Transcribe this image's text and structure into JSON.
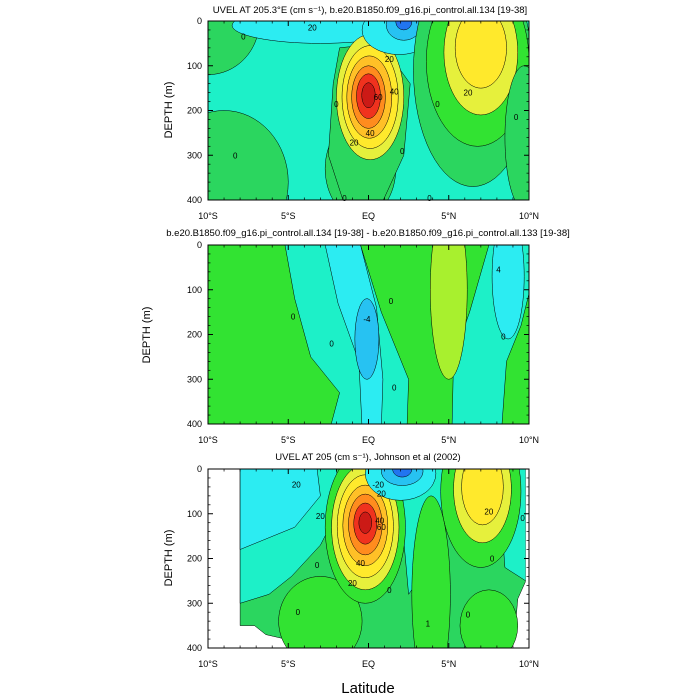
{
  "chart_data": [
    {
      "type": "heatmap",
      "title": "UVEL AT 205.3°E (cm s⁻¹), b.e20.B1850.f09_g16.pi_control.all.134 [19-38]",
      "ylabel": "DEPTH (m)",
      "xlabel": "",
      "x_ticks": [
        "10°S",
        "5°S",
        "EQ",
        "5°N",
        "10°N"
      ],
      "y_ticks": [
        "0",
        "100",
        "200",
        "300",
        "400"
      ],
      "xlim": [
        -10,
        10
      ],
      "ylim": [
        400,
        0
      ],
      "contour_labels": [
        {
          "text": "20",
          "lat": -3.5,
          "depth": 15
        },
        {
          "text": "0",
          "lat": -7.8,
          "depth": 35
        },
        {
          "text": "20",
          "lat": 1.3,
          "depth": 85
        },
        {
          "text": "40",
          "lat": 1.6,
          "depth": 158
        },
        {
          "text": "60",
          "lat": 0.6,
          "depth": 170
        },
        {
          "text": "40",
          "lat": 0.1,
          "depth": 250
        },
        {
          "text": "20",
          "lat": -0.9,
          "depth": 272
        },
        {
          "text": "0",
          "lat": -2.0,
          "depth": 185
        },
        {
          "text": "0",
          "lat": 4.3,
          "depth": 185
        },
        {
          "text": "20",
          "lat": 6.2,
          "depth": 160
        },
        {
          "text": "0",
          "lat": 9.2,
          "depth": 215
        },
        {
          "text": "0",
          "lat": -8.3,
          "depth": 300
        },
        {
          "text": "0",
          "lat": -1.5,
          "depth": 395
        },
        {
          "text": "0",
          "lat": 3.8,
          "depth": 395
        },
        {
          "text": "0",
          "lat": 2.1,
          "depth": 290
        }
      ]
    },
    {
      "type": "heatmap",
      "title": "b.e20.B1850.f09_g16.pi_control.all.134 [19-38] - b.e20.B1850.f09_g16.pi_control.all.133 [19-38]",
      "ylabel": "DEPTH (m)",
      "xlabel": "",
      "x_ticks": [
        "10°S",
        "5°S",
        "EQ",
        "5°N",
        "10°N"
      ],
      "y_ticks": [
        "0",
        "100",
        "200",
        "300",
        "400"
      ],
      "xlim": [
        -10,
        10
      ],
      "ylim": [
        400,
        0
      ],
      "contour_labels": [
        {
          "text": "0",
          "lat": -4.7,
          "depth": 160
        },
        {
          "text": "0",
          "lat": -2.3,
          "depth": 220
        },
        {
          "text": "0",
          "lat": 1.4,
          "depth": 125
        },
        {
          "text": "-4",
          "lat": -0.1,
          "depth": 165
        },
        {
          "text": "0",
          "lat": 1.6,
          "depth": 318
        },
        {
          "text": "0",
          "lat": 8.4,
          "depth": 205
        },
        {
          "text": "4",
          "lat": 8.1,
          "depth": 55
        }
      ]
    },
    {
      "type": "heatmap",
      "title": "UVEL AT 205 (cm s⁻¹), Johnson et al (2002)",
      "ylabel": "DEPTH (m)",
      "xlabel": "Latitude",
      "x_ticks": [
        "10°S",
        "5°S",
        "EQ",
        "5°N",
        "10°N"
      ],
      "y_ticks": [
        "0",
        "100",
        "200",
        "300",
        "400"
      ],
      "xlim": [
        -10,
        10
      ],
      "ylim": [
        400,
        0
      ],
      "contour_labels": [
        {
          "text": "20",
          "lat": -4.5,
          "depth": 35
        },
        {
          "text": "20",
          "lat": -3.0,
          "depth": 105
        },
        {
          "text": "-20",
          "lat": 0.6,
          "depth": 35
        },
        {
          "text": "20",
          "lat": 0.8,
          "depth": 55
        },
        {
          "text": "40",
          "lat": 0.7,
          "depth": 115
        },
        {
          "text": "60",
          "lat": 0.8,
          "depth": 130
        },
        {
          "text": "40",
          "lat": -0.5,
          "depth": 210
        },
        {
          "text": "20",
          "lat": -1.0,
          "depth": 255
        },
        {
          "text": "0",
          "lat": -3.2,
          "depth": 215
        },
        {
          "text": "0",
          "lat": 1.3,
          "depth": 270
        },
        {
          "text": "0",
          "lat": -4.4,
          "depth": 320
        },
        {
          "text": "1",
          "lat": 3.7,
          "depth": 345
        },
        {
          "text": "0",
          "lat": 6.2,
          "depth": 325
        },
        {
          "text": "20",
          "lat": 7.5,
          "depth": 95
        },
        {
          "text": "0",
          "lat": 9.6,
          "depth": 110
        },
        {
          "text": "0",
          "lat": 7.7,
          "depth": 200
        }
      ]
    }
  ]
}
